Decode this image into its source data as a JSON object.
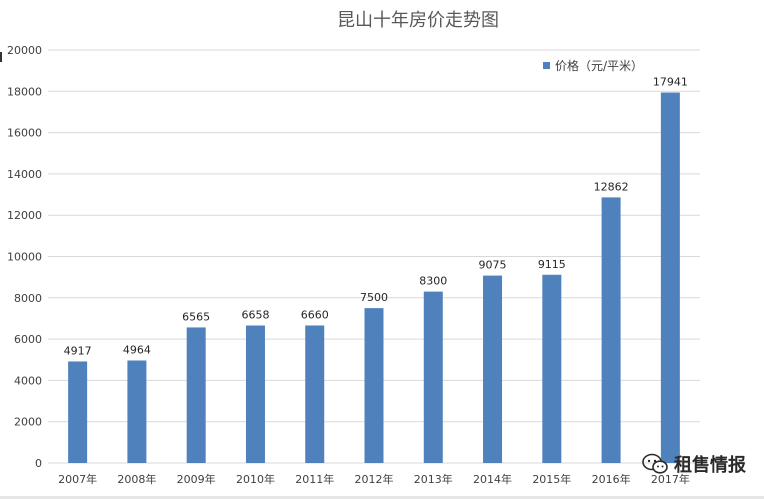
{
  "chart_data": {
    "type": "bar",
    "title": "昆山十年房价走势图",
    "categories": [
      "2007年",
      "2008年",
      "2009年",
      "2010年",
      "2011年",
      "2012年",
      "2013年",
      "2014年",
      "2015年",
      "2016年",
      "2017年"
    ],
    "series": [
      {
        "name": "价格（元/平米）",
        "values": [
          4917,
          4964,
          6565,
          6658,
          6660,
          7500,
          8300,
          9075,
          9115,
          12862,
          17941
        ]
      }
    ],
    "value_labels": [
      "4917",
      "4964",
      "6565",
      "6658",
      "6660",
      "7500",
      "8300",
      "9075",
      "9115",
      "12862",
      "17941"
    ],
    "ylim": [
      0,
      20000
    ],
    "yticks": [
      0,
      2000,
      4000,
      6000,
      8000,
      10000,
      12000,
      14000,
      16000,
      18000,
      20000
    ],
    "ytick_labels": [
      "0",
      "2000",
      "4000",
      "6000",
      "8000",
      "10000",
      "12000",
      "14000",
      "16000",
      "18000",
      "20000"
    ],
    "xlabel": "",
    "ylabel": "",
    "grid": true,
    "legend_position": "top-right",
    "bar_color": "#4f81bd",
    "grid_color": "#d9d9d9"
  },
  "watermark": {
    "text": "租售情报",
    "icon": "wechat-icon"
  }
}
